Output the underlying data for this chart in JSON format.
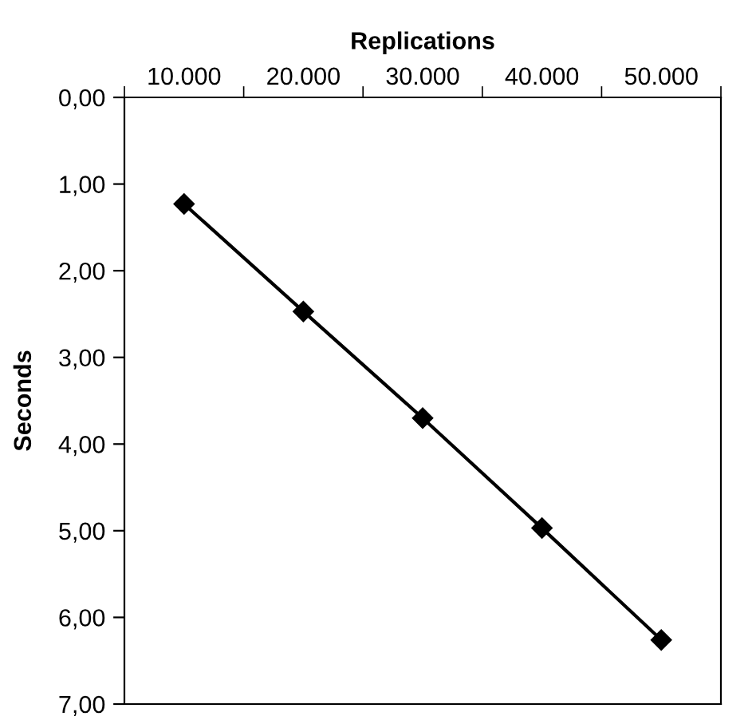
{
  "chart_data": {
    "type": "line",
    "xlabel": "Replications",
    "ylabel": "Seconds",
    "categories": [
      "10.000",
      "20.000",
      "30.000",
      "40.000",
      "50.000"
    ],
    "series": [
      {
        "color": "#000000",
        "values": [
          1.23,
          2.47,
          3.7,
          4.97,
          6.26
        ]
      }
    ],
    "ylim": [
      7,
      0
    ],
    "yticks": [
      {
        "value": 0,
        "label": "0,00"
      },
      {
        "value": 1,
        "label": "1,00"
      },
      {
        "value": 2,
        "label": "2,00"
      },
      {
        "value": 3,
        "label": "3,00"
      },
      {
        "value": 4,
        "label": "4,00"
      },
      {
        "value": 5,
        "label": "5,00"
      },
      {
        "value": 6,
        "label": "6,00"
      },
      {
        "value": 7,
        "label": "7,00"
      }
    ],
    "marker": "diamond",
    "line_style": "solid",
    "grid": false,
    "legend": false
  }
}
